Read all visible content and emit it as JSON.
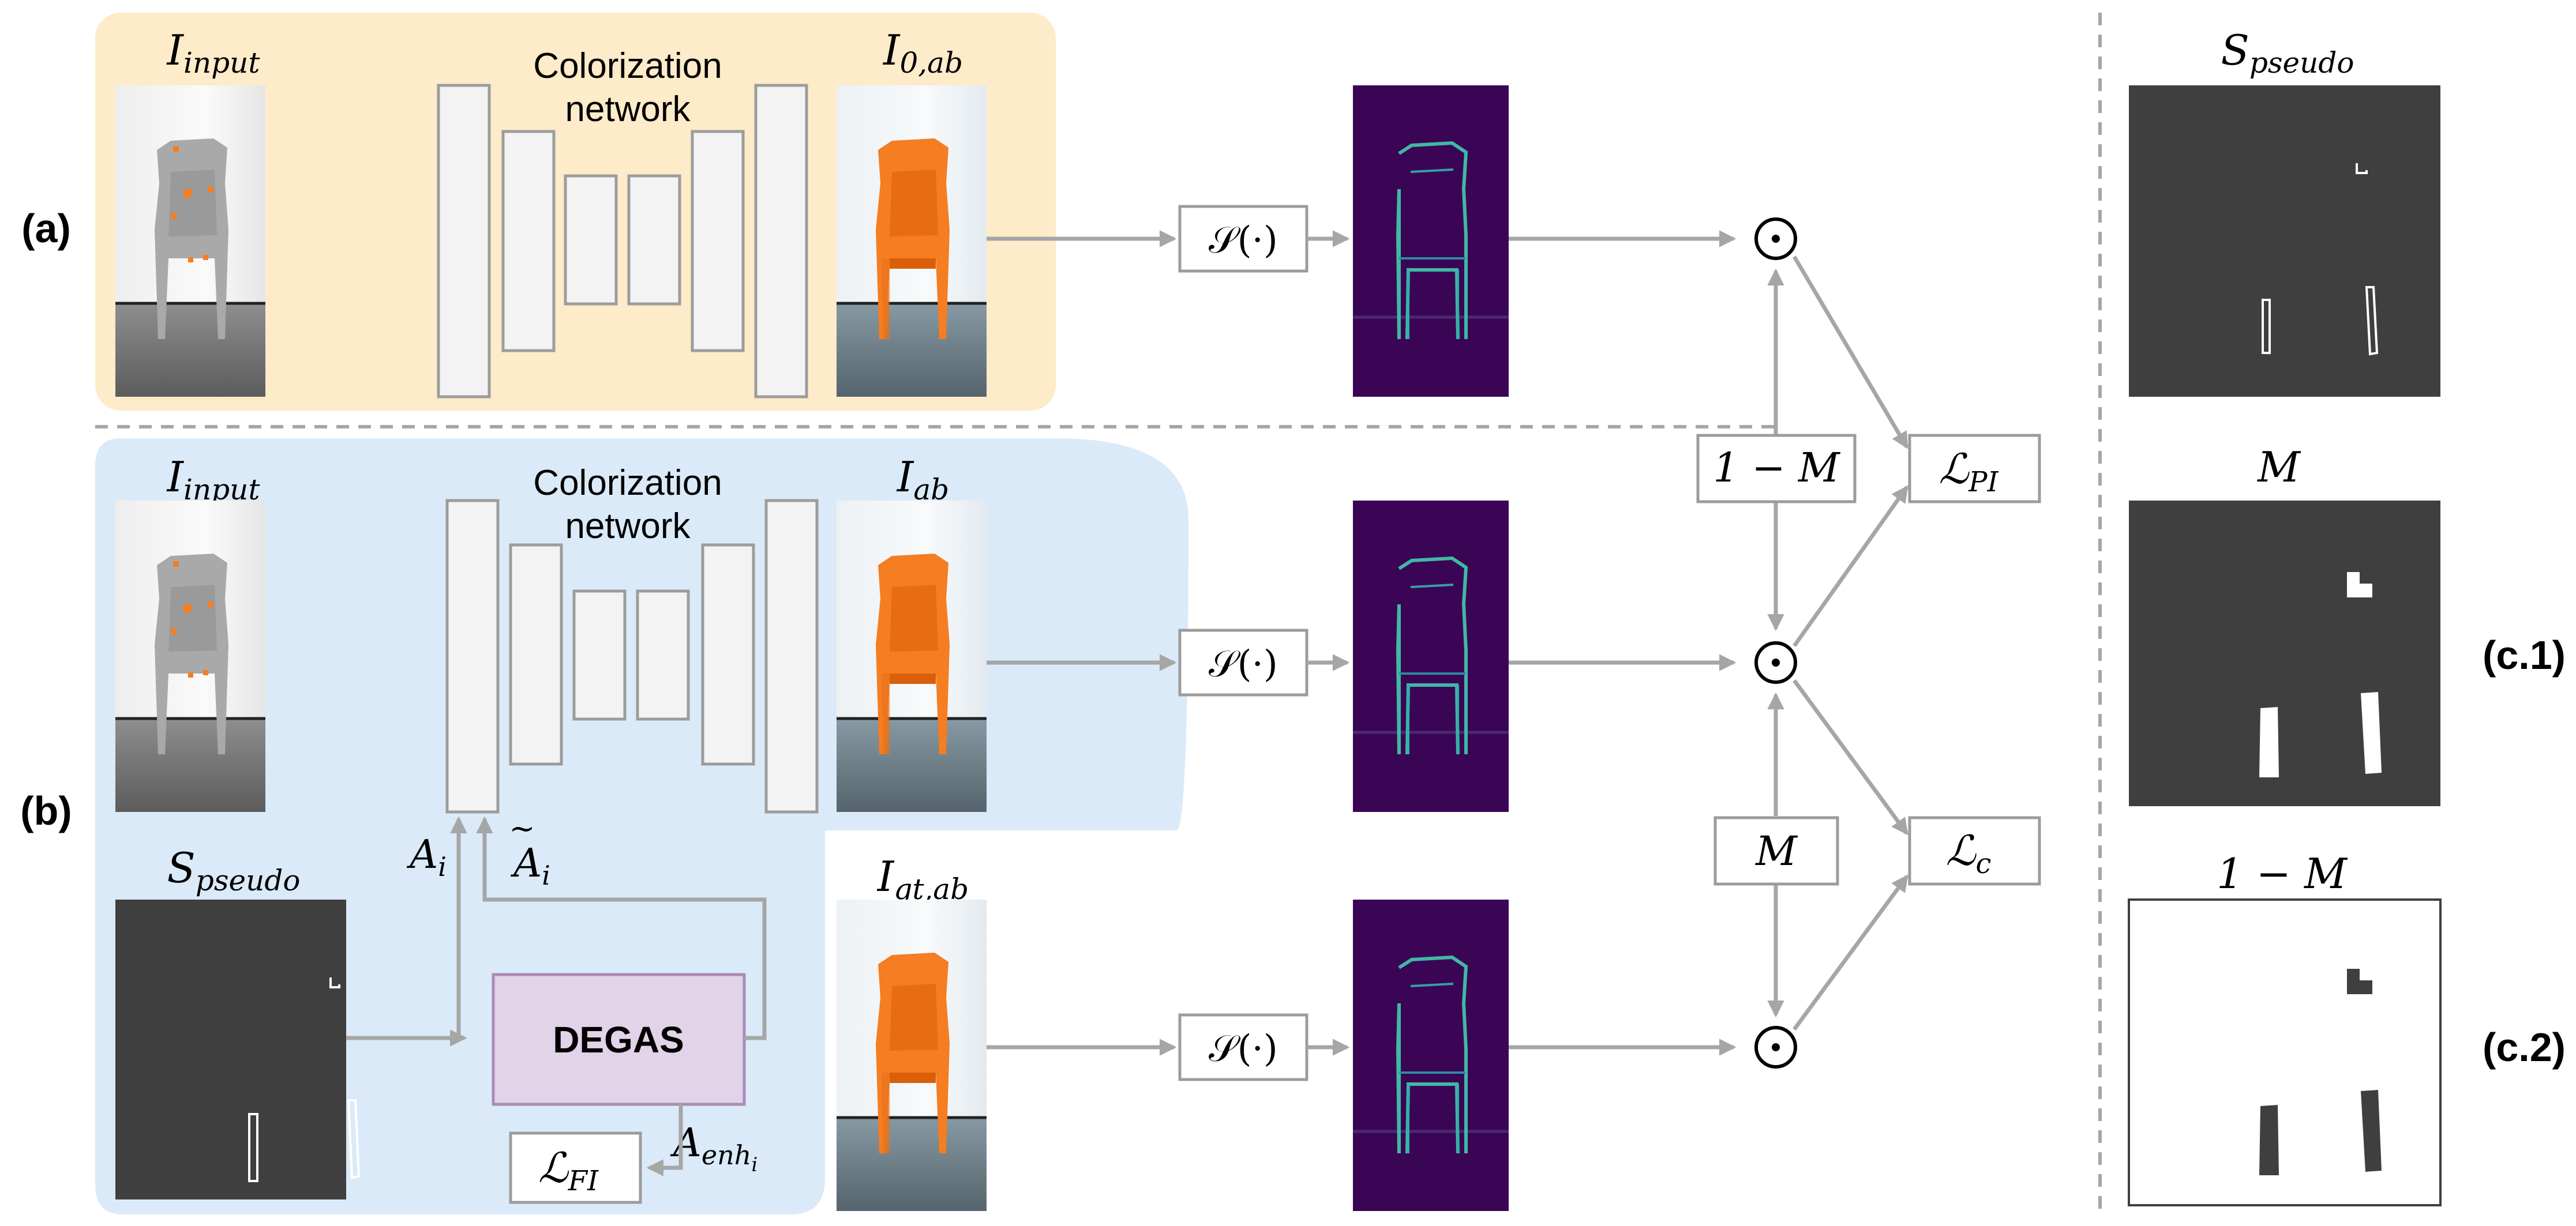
{
  "panels": {
    "a": {
      "label": "(a)",
      "input_title": "I",
      "input_sub": "input",
      "network_line1": "Colorization",
      "network_line2": "network",
      "output_title": "I",
      "output_sub": "0,ab"
    },
    "b": {
      "label": "(b)",
      "input_title": "I",
      "input_sub": "input",
      "network_line1": "Colorization",
      "network_line2": "network",
      "output_title": "I",
      "output_sub": "ab",
      "pseudo_title": "S",
      "pseudo_sub": "pseudo",
      "a_i": "A",
      "a_i_sub": "i",
      "a_tilde": "A",
      "a_tilde_sub": "i",
      "degas": "DEGAS",
      "loss_fi": "ℒ",
      "loss_fi_sub": "FI",
      "a_enh": "A",
      "a_enh_sub": "enh",
      "a_enh_subsub": "i"
    },
    "gt": {
      "title": "I",
      "sub": "gt,ab"
    },
    "operators": {
      "s_op": "𝒮(·)",
      "odot": "⊙",
      "one_minus_m": "1 − M",
      "m": "M",
      "loss_pi": "ℒ",
      "loss_pi_sub": "PI",
      "loss_c": "ℒ",
      "loss_c_sub": "c"
    },
    "c": {
      "pseudo_title": "S",
      "pseudo_sub": "pseudo",
      "m_title": "M",
      "one_minus_m_title": "1 − M",
      "label_c1": "(c.1)",
      "label_c2": "(c.2)"
    }
  },
  "colors": {
    "panel_a_bg": "#fdebc9",
    "panel_b_bg": "#dbeaf8",
    "net_block": "#f3f3f3",
    "net_border": "#9c9c9c",
    "arrow": "#a6a6a6",
    "degas_fill": "#e2d3e8",
    "degas_border": "#a98bb5",
    "heatmap_bg": "#3b0556",
    "heatmap_edge": "#3fc3a8",
    "chair_orange": "#f57d22",
    "gray_chair": "#a8a8a8",
    "mask_bg": "#3f3f3f"
  }
}
